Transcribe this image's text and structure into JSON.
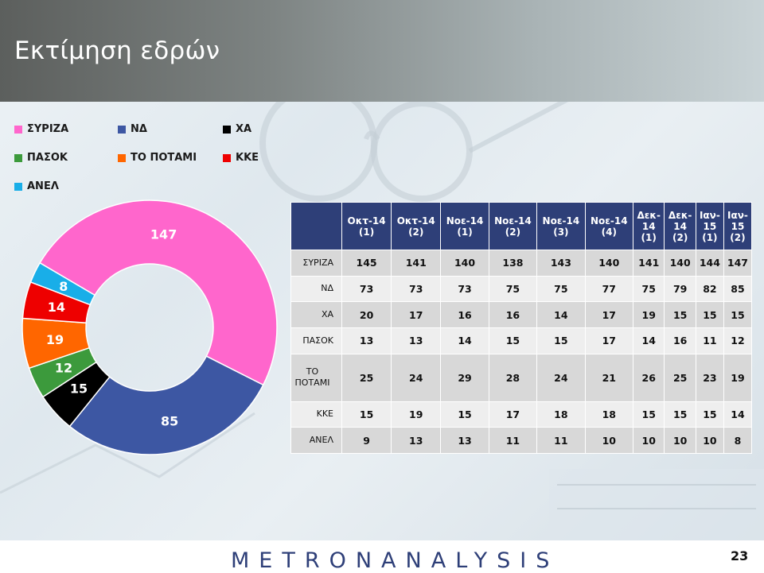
{
  "header": {
    "title": "Εκτίμηση εδρών"
  },
  "chart_data": {
    "type": "pie",
    "slices": [
      {
        "name": "ΣΥΡΙΖΑ",
        "value": 147,
        "color": "#ff66cc"
      },
      {
        "name": "ΝΔ",
        "value": 85,
        "color": "#3d57a3"
      },
      {
        "name": "ΧΑ",
        "value": 15,
        "color": "#000000"
      },
      {
        "name": "ΠΑΣΟΚ",
        "value": 12,
        "color": "#3c9a3c"
      },
      {
        "name": "ΤΟ ΠΟΤΑΜΙ",
        "value": 19,
        "color": "#ff6600"
      },
      {
        "name": "ΚΚΕ",
        "value": 14,
        "color": "#ee0000"
      },
      {
        "name": "ΑΝΕΛ",
        "value": 8,
        "color": "#19aee8"
      }
    ],
    "legend": [
      "ΣΥΡΙΖΑ",
      "ΝΔ",
      "ΧΑ",
      "ΠΑΣΟΚ",
      "ΤΟ ΠΟΤΑΜΙ",
      "ΚΚΕ",
      "ΑΝΕΛ"
    ],
    "legend_position": "top-left"
  },
  "table": {
    "columns": [
      [
        "Οκτ-14",
        "(1)"
      ],
      [
        "Οκτ-14",
        "(2)"
      ],
      [
        "Νοε-14",
        "(1)"
      ],
      [
        "Νοε-14",
        "(2)"
      ],
      [
        "Νοε-14",
        "(3)"
      ],
      [
        "Νοε-14",
        "(4)"
      ],
      [
        "Δεκ-",
        "14",
        "(1)"
      ],
      [
        "Δεκ-",
        "14",
        "(2)"
      ],
      [
        "Ιαν-",
        "15",
        "(1)"
      ],
      [
        "Ιαν-",
        "15",
        "(2)"
      ]
    ],
    "rows": [
      {
        "label": [
          "ΣΥΡΙΖΑ"
        ],
        "values": [
          145,
          141,
          140,
          138,
          143,
          140,
          141,
          140,
          144,
          147
        ]
      },
      {
        "label": [
          "ΝΔ"
        ],
        "values": [
          73,
          73,
          73,
          75,
          75,
          77,
          75,
          79,
          82,
          85
        ]
      },
      {
        "label": [
          "ΧΑ"
        ],
        "values": [
          20,
          17,
          16,
          16,
          14,
          17,
          19,
          15,
          15,
          15
        ]
      },
      {
        "label": [
          "ΠΑΣΟΚ"
        ],
        "values": [
          13,
          13,
          14,
          15,
          15,
          17,
          14,
          16,
          11,
          12
        ]
      },
      {
        "label": [
          "ΤΟ",
          "ΠΟΤΑΜΙ"
        ],
        "values": [
          25,
          24,
          29,
          28,
          24,
          21,
          26,
          25,
          23,
          19
        ]
      },
      {
        "label": [
          "ΚΚΕ"
        ],
        "values": [
          15,
          19,
          15,
          17,
          18,
          18,
          15,
          15,
          15,
          14
        ]
      },
      {
        "label": [
          "ΑΝΕΛ"
        ],
        "values": [
          9,
          13,
          13,
          11,
          11,
          10,
          10,
          10,
          10,
          8
        ]
      }
    ]
  },
  "footer": {
    "brand": "METRONANALYSIS",
    "page_number": "23"
  }
}
